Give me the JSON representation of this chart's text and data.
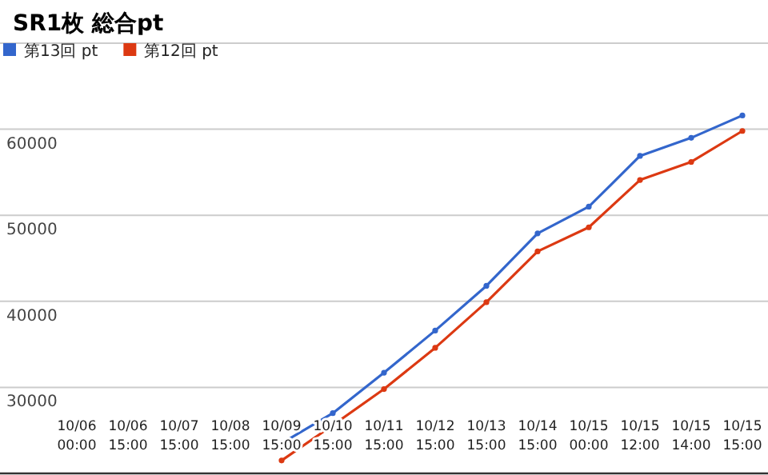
{
  "chart_data": {
    "type": "line",
    "title": "SR1枚 総合pt",
    "categories": [
      "10/06\n00:00",
      "10/06\n15:00",
      "10/07\n15:00",
      "10/08\n15:00",
      "10/09\n15:00",
      "10/10\n15:00",
      "10/11\n15:00",
      "10/12\n15:00",
      "10/13\n15:00",
      "10/14\n15:00",
      "10/15\n00:00",
      "10/15\n12:00",
      "10/15\n14:00",
      "10/15\n15:00"
    ],
    "series": [
      {
        "name": "第13回 pt",
        "color": "#3366cc",
        "values": [
          null,
          null,
          null,
          null,
          23500,
          27000,
          31700,
          36600,
          41800,
          47900,
          51000,
          56900,
          59000,
          61600
        ]
      },
      {
        "name": "第12回 pt",
        "color": "#dc3912",
        "values": [
          null,
          null,
          null,
          null,
          21500,
          25600,
          29800,
          34600,
          39900,
          45800,
          48600,
          54100,
          56200,
          59800
        ]
      }
    ],
    "ylim": [
      20000,
      70000
    ],
    "yticks": [
      30000,
      40000,
      50000,
      60000
    ],
    "grid": "y",
    "legend": "top left",
    "marker": "circle"
  }
}
